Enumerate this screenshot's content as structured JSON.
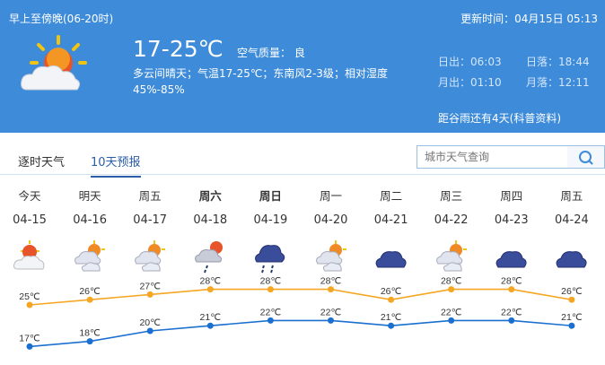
{
  "header": {
    "period": "早上至傍晚(06-20时)",
    "update": "更新时间：04月15日 05:13",
    "temp": "17-25℃",
    "aqi": "空气质量： 良",
    "desc": "多云间晴天；气温17-25℃；东南风2-3级；相对湿度",
    "humidity": "45%-85%",
    "sunrise": "日出：06:03",
    "sunset": "日落：18:44",
    "moonrise": "月出：01:10",
    "moonset": "月落：12:11",
    "solar_term": "距谷雨还有4天(科普资料)",
    "icon": "partly-sunny-cloud-icon"
  },
  "tabs": [
    {
      "label": "逐时天气"
    },
    {
      "label": "10天预报",
      "active": true
    }
  ],
  "search": {
    "placeholder": "城市天气查询",
    "icon": "search-icon"
  },
  "days": [
    {
      "week": "今天",
      "date": "04-15",
      "icon": "sun-cloud",
      "bold": false
    },
    {
      "week": "明天",
      "date": "04-16",
      "icon": "partly-cloudy",
      "bold": false
    },
    {
      "week": "周五",
      "date": "04-17",
      "icon": "partly-cloudy",
      "bold": false
    },
    {
      "week": "周六",
      "date": "04-18",
      "icon": "cloud-rain-sun",
      "bold": true
    },
    {
      "week": "周日",
      "date": "04-19",
      "icon": "rain",
      "bold": true
    },
    {
      "week": "周一",
      "date": "04-20",
      "icon": "partly-cloudy",
      "bold": false
    },
    {
      "week": "周二",
      "date": "04-21",
      "icon": "overcast",
      "bold": false
    },
    {
      "week": "周三",
      "date": "04-22",
      "icon": "partly-cloudy",
      "bold": false
    },
    {
      "week": "周四",
      "date": "04-23",
      "icon": "overcast",
      "bold": false
    },
    {
      "week": "周五",
      "date": "04-24",
      "icon": "overcast",
      "bold": false
    }
  ],
  "chart_data": {
    "type": "line",
    "categories": [
      "04-15",
      "04-16",
      "04-17",
      "04-18",
      "04-19",
      "04-20",
      "04-21",
      "04-22",
      "04-23",
      "04-24"
    ],
    "series": [
      {
        "values": [
          25,
          26,
          27,
          28,
          28,
          28,
          26,
          28,
          28,
          26
        ],
        "color": "#f5a623"
      },
      {
        "values": [
          17,
          18,
          20,
          21,
          22,
          22,
          21,
          22,
          22,
          21
        ],
        "color": "#1a6fd0"
      }
    ],
    "unit": "℃"
  }
}
